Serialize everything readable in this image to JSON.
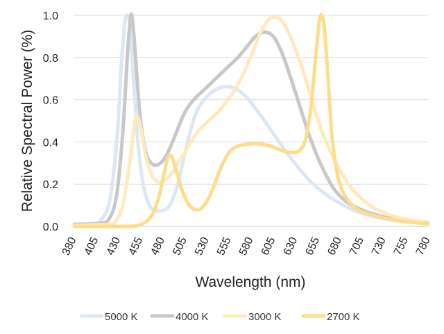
{
  "chart_data": {
    "type": "line",
    "title": "",
    "xlabel": "Wavelength (nm)",
    "ylabel": "Relative Spectral Power (%)",
    "xlim": [
      380,
      780
    ],
    "ylim": [
      0,
      1.0
    ],
    "x_ticks": [
      "380",
      "405",
      "430",
      "455",
      "480",
      "505",
      "530",
      "555",
      "580",
      "605",
      "630",
      "655",
      "680",
      "705",
      "730",
      "755",
      "780"
    ],
    "y_ticks": [
      "0.0",
      "0.2",
      "0.4",
      "0.6",
      "0.8",
      "1.0"
    ],
    "grid": "horizontal",
    "legend_position": "bottom",
    "series": [
      {
        "name": "5000 K",
        "color": "#dbe7f4",
        "points": [
          [
            380,
            0.01
          ],
          [
            400,
            0.012
          ],
          [
            410,
            0.03
          ],
          [
            420,
            0.12
          ],
          [
            428,
            0.4
          ],
          [
            433,
            0.75
          ],
          [
            437,
            0.96
          ],
          [
            440,
            1.0
          ],
          [
            443,
            0.95
          ],
          [
            447,
            0.7
          ],
          [
            452,
            0.4
          ],
          [
            458,
            0.2
          ],
          [
            465,
            0.1
          ],
          [
            472,
            0.075
          ],
          [
            480,
            0.075
          ],
          [
            488,
            0.1
          ],
          [
            497,
            0.2
          ],
          [
            507,
            0.38
          ],
          [
            517,
            0.53
          ],
          [
            527,
            0.6
          ],
          [
            537,
            0.64
          ],
          [
            547,
            0.66
          ],
          [
            557,
            0.66
          ],
          [
            567,
            0.64
          ],
          [
            577,
            0.6
          ],
          [
            590,
            0.53
          ],
          [
            605,
            0.44
          ],
          [
            620,
            0.35
          ],
          [
            635,
            0.27
          ],
          [
            650,
            0.2
          ],
          [
            665,
            0.15
          ],
          [
            680,
            0.11
          ],
          [
            700,
            0.07
          ],
          [
            720,
            0.045
          ],
          [
            740,
            0.03
          ],
          [
            760,
            0.02
          ],
          [
            780,
            0.015
          ]
        ]
      },
      {
        "name": "4000 K",
        "color": "#c8c8c8",
        "points": [
          [
            380,
            0.01
          ],
          [
            410,
            0.015
          ],
          [
            420,
            0.04
          ],
          [
            428,
            0.15
          ],
          [
            435,
            0.45
          ],
          [
            440,
            0.8
          ],
          [
            444,
            1.0
          ],
          [
            447,
            0.93
          ],
          [
            451,
            0.7
          ],
          [
            455,
            0.5
          ],
          [
            461,
            0.35
          ],
          [
            467,
            0.3
          ],
          [
            473,
            0.29
          ],
          [
            480,
            0.31
          ],
          [
            487,
            0.36
          ],
          [
            495,
            0.44
          ],
          [
            505,
            0.54
          ],
          [
            515,
            0.6
          ],
          [
            525,
            0.64
          ],
          [
            535,
            0.68
          ],
          [
            545,
            0.72
          ],
          [
            555,
            0.76
          ],
          [
            565,
            0.8
          ],
          [
            575,
            0.85
          ],
          [
            585,
            0.9
          ],
          [
            595,
            0.92
          ],
          [
            605,
            0.9
          ],
          [
            615,
            0.82
          ],
          [
            625,
            0.7
          ],
          [
            635,
            0.57
          ],
          [
            645,
            0.44
          ],
          [
            655,
            0.33
          ],
          [
            665,
            0.24
          ],
          [
            675,
            0.17
          ],
          [
            690,
            0.11
          ],
          [
            710,
            0.07
          ],
          [
            730,
            0.045
          ],
          [
            750,
            0.028
          ],
          [
            770,
            0.017
          ],
          [
            780,
            0.014
          ]
        ]
      },
      {
        "name": "3000 K",
        "color": "#fdebbd",
        "points": [
          [
            380,
            0.005
          ],
          [
            420,
            0.01
          ],
          [
            428,
            0.03
          ],
          [
            435,
            0.1
          ],
          [
            442,
            0.28
          ],
          [
            448,
            0.48
          ],
          [
            451,
            0.52
          ],
          [
            455,
            0.47
          ],
          [
            461,
            0.33
          ],
          [
            468,
            0.24
          ],
          [
            475,
            0.21
          ],
          [
            483,
            0.22
          ],
          [
            492,
            0.26
          ],
          [
            502,
            0.33
          ],
          [
            512,
            0.4
          ],
          [
            522,
            0.46
          ],
          [
            532,
            0.5
          ],
          [
            542,
            0.54
          ],
          [
            552,
            0.59
          ],
          [
            562,
            0.65
          ],
          [
            572,
            0.73
          ],
          [
            582,
            0.83
          ],
          [
            592,
            0.93
          ],
          [
            600,
            0.98
          ],
          [
            606,
            0.99
          ],
          [
            613,
            0.98
          ],
          [
            621,
            0.93
          ],
          [
            630,
            0.84
          ],
          [
            640,
            0.72
          ],
          [
            650,
            0.58
          ],
          [
            660,
            0.45
          ],
          [
            670,
            0.35
          ],
          [
            680,
            0.27
          ],
          [
            690,
            0.2
          ],
          [
            705,
            0.13
          ],
          [
            720,
            0.085
          ],
          [
            740,
            0.05
          ],
          [
            760,
            0.03
          ],
          [
            780,
            0.02
          ]
        ]
      },
      {
        "name": "2700 K",
        "color": "#fddc8a",
        "points": [
          [
            380,
            0.0
          ],
          [
            440,
            0.0
          ],
          [
            452,
            0.005
          ],
          [
            462,
            0.025
          ],
          [
            470,
            0.07
          ],
          [
            477,
            0.16
          ],
          [
            482,
            0.26
          ],
          [
            486,
            0.33
          ],
          [
            490,
            0.33
          ],
          [
            495,
            0.27
          ],
          [
            502,
            0.17
          ],
          [
            510,
            0.1
          ],
          [
            517,
            0.08
          ],
          [
            525,
            0.09
          ],
          [
            535,
            0.16
          ],
          [
            545,
            0.27
          ],
          [
            555,
            0.35
          ],
          [
            565,
            0.38
          ],
          [
            578,
            0.39
          ],
          [
            590,
            0.39
          ],
          [
            602,
            0.38
          ],
          [
            615,
            0.36
          ],
          [
            625,
            0.35
          ],
          [
            635,
            0.36
          ],
          [
            642,
            0.42
          ],
          [
            648,
            0.58
          ],
          [
            653,
            0.8
          ],
          [
            657,
            0.97
          ],
          [
            660,
            1.0
          ],
          [
            663,
            0.93
          ],
          [
            667,
            0.7
          ],
          [
            671,
            0.45
          ],
          [
            676,
            0.28
          ],
          [
            682,
            0.18
          ],
          [
            690,
            0.12
          ],
          [
            700,
            0.08
          ],
          [
            715,
            0.055
          ],
          [
            735,
            0.035
          ],
          [
            755,
            0.022
          ],
          [
            780,
            0.012
          ]
        ]
      }
    ]
  }
}
